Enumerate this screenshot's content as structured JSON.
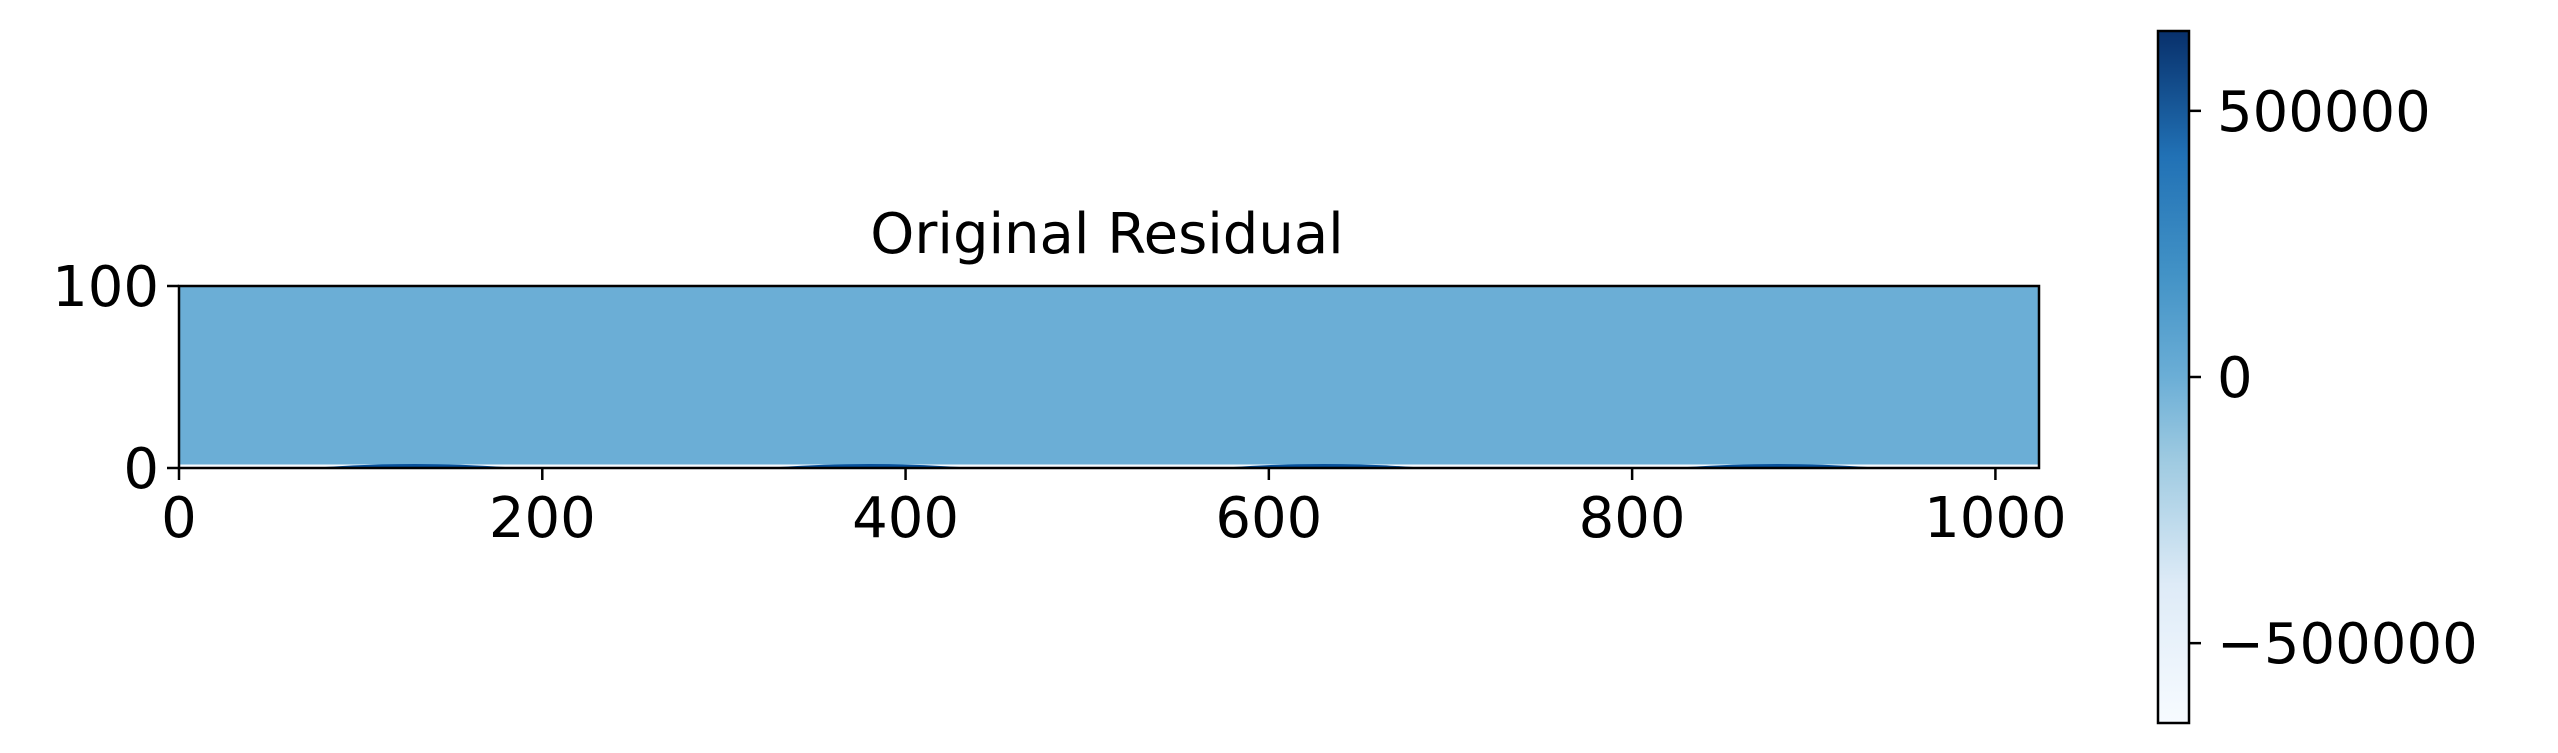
{
  "colors": {
    "field": "#6baed6",
    "spike": "#08519c",
    "cmap_low": "#f7fbff",
    "cmap_mid": "#6baed6",
    "cmap_high": "#08306b",
    "axis": "#000000"
  },
  "chart_data": {
    "type": "heatmap",
    "title": "Original Residual",
    "xlabel": "",
    "ylabel": "",
    "xlim": [
      0,
      1024
    ],
    "ylim": [
      0,
      100
    ],
    "x_ticks": [
      0,
      200,
      400,
      600,
      800,
      1000
    ],
    "x_tick_labels": [
      "0",
      "200",
      "400",
      "600",
      "800",
      "1000"
    ],
    "y_ticks": [
      0,
      100
    ],
    "y_tick_labels": [
      "0",
      "100"
    ],
    "background_value": 0,
    "colormap": "Blues",
    "colorbar": {
      "vmin": -650000,
      "vmax": 650000,
      "ticks": [
        500000,
        0,
        -500000
      ],
      "tick_labels": [
        "500000",
        "0",
        "−500000"
      ]
    },
    "bottom_row_peaks_x": [
      130,
      380,
      630,
      880
    ]
  }
}
